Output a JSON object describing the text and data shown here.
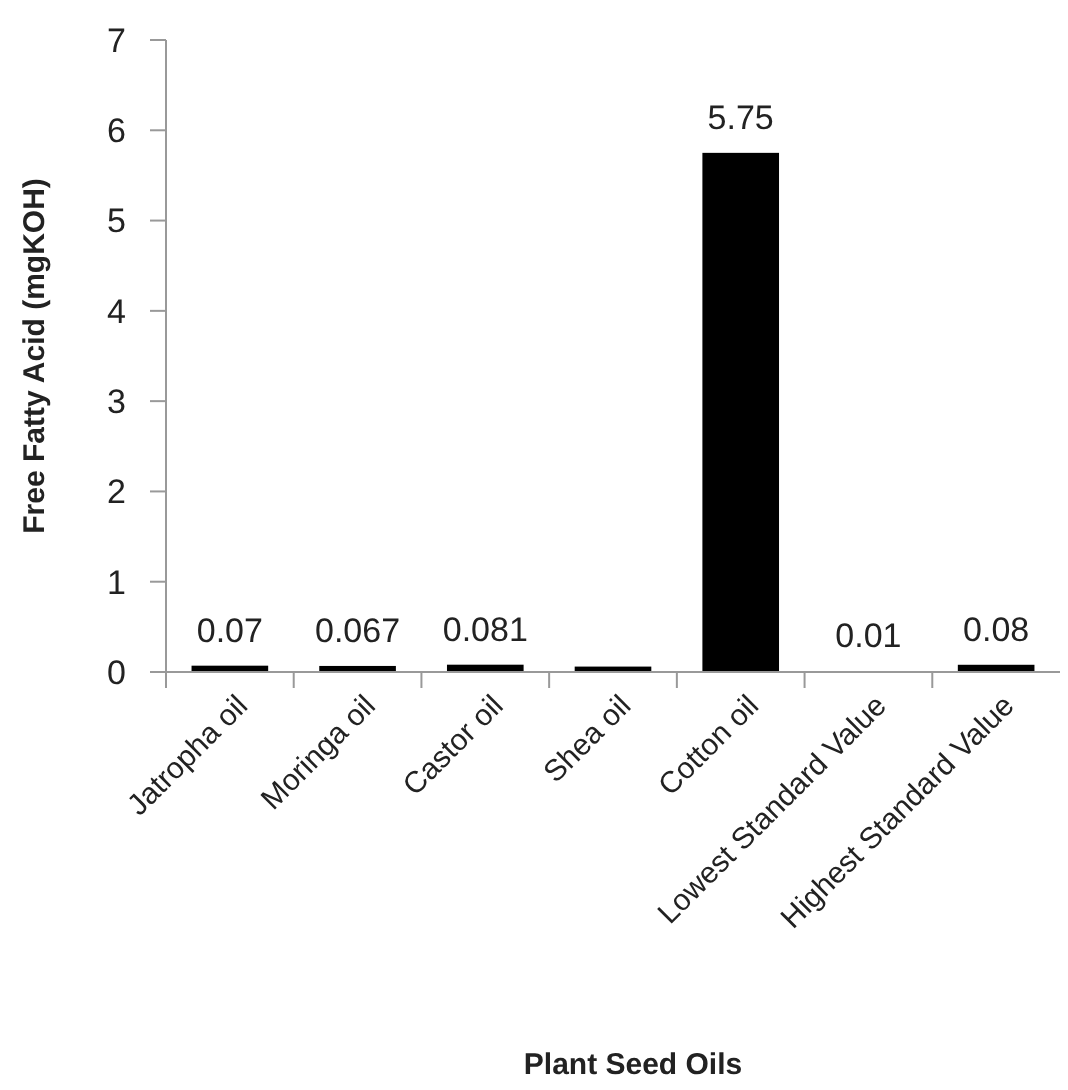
{
  "chart_data": {
    "type": "bar",
    "xlabel": "Plant Seed Oils",
    "ylabel": "Free Fatty Acid (mgKOH)",
    "categories": [
      "Jatropha oil",
      "Moringa oil",
      "Castor oil",
      "Shea oil",
      "Cotton oil",
      "Lowest Standard Value",
      "Highest Standard Value"
    ],
    "values": [
      0.07,
      0.067,
      0.081,
      0.06,
      5.75,
      0.01,
      0.08
    ],
    "value_labels": [
      "0.07",
      "0.067",
      "0.081",
      null,
      "5.75",
      "0.01",
      "0.08"
    ],
    "color": "#000000",
    "ylim": [
      0,
      7
    ],
    "yticks": [
      0,
      1,
      2,
      3,
      4,
      5,
      6,
      7
    ],
    "grid": false
  }
}
